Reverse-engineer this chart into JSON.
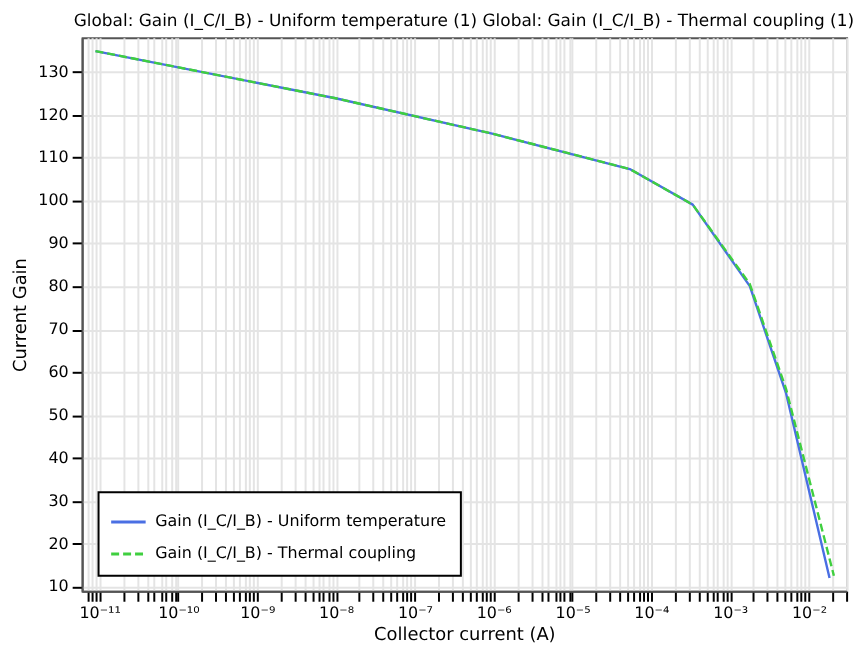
{
  "chart_data": {
    "type": "line",
    "title": "Global: Gain (I_C/I_B) - Uniform temperature (1)  Global: Gain (I_C/I_B) - Thermal coupling (1)",
    "xlabel": "Collector current (A)",
    "ylabel": "Current Gain",
    "log": "x",
    "grid": true,
    "legend": "bottom left",
    "xlim": [
      6e-12,
      0.03
    ],
    "ylim": [
      9,
      138
    ],
    "xticks": [
      {
        "value": 1e-11,
        "label": "10⁻¹¹"
      },
      {
        "value": 1e-10,
        "label": "10⁻¹⁰"
      },
      {
        "value": 1e-09,
        "label": "10⁻⁹"
      },
      {
        "value": 1e-08,
        "label": "10⁻⁸"
      },
      {
        "value": 1e-07,
        "label": "10⁻⁷"
      },
      {
        "value": 1e-06,
        "label": "10⁻⁶"
      },
      {
        "value": 1e-05,
        "label": "10⁻⁵"
      },
      {
        "value": 0.0001,
        "label": "10⁻⁴"
      },
      {
        "value": 0.001,
        "label": "10⁻³"
      },
      {
        "value": 0.01,
        "label": "10⁻²"
      },
      {
        "value": 7e-12,
        "label": null
      },
      {
        "value": 8e-12,
        "label": null
      },
      {
        "value": 9e-12,
        "label": null
      },
      {
        "value": 2e-11,
        "label": null
      },
      {
        "value": 3e-11,
        "label": null
      },
      {
        "value": 4e-11,
        "label": null
      },
      {
        "value": 5e-11,
        "label": null
      },
      {
        "value": 6e-11,
        "label": null
      },
      {
        "value": 7e-11,
        "label": null
      },
      {
        "value": 8e-11,
        "label": null
      },
      {
        "value": 9e-11,
        "label": null
      },
      {
        "value": 2e-10,
        "label": null
      },
      {
        "value": 3e-10,
        "label": null
      },
      {
        "value": 4e-10,
        "label": null
      },
      {
        "value": 5e-10,
        "label": null
      },
      {
        "value": 6e-10,
        "label": null
      },
      {
        "value": 7e-10,
        "label": null
      },
      {
        "value": 8e-10,
        "label": null
      },
      {
        "value": 9e-10,
        "label": null
      },
      {
        "value": 2e-09,
        "label": null
      },
      {
        "value": 3e-09,
        "label": null
      },
      {
        "value": 4e-09,
        "label": null
      },
      {
        "value": 5e-09,
        "label": null
      },
      {
        "value": 6e-09,
        "label": null
      },
      {
        "value": 7e-09,
        "label": null
      },
      {
        "value": 8e-09,
        "label": null
      },
      {
        "value": 9e-09,
        "label": null
      },
      {
        "value": 2e-08,
        "label": null
      },
      {
        "value": 3e-08,
        "label": null
      },
      {
        "value": 4e-08,
        "label": null
      },
      {
        "value": 5e-08,
        "label": null
      },
      {
        "value": 6e-08,
        "label": null
      },
      {
        "value": 7e-08,
        "label": null
      },
      {
        "value": 8e-08,
        "label": null
      },
      {
        "value": 9e-08,
        "label": null
      },
      {
        "value": 2e-07,
        "label": null
      },
      {
        "value": 3e-07,
        "label": null
      },
      {
        "value": 4e-07,
        "label": null
      },
      {
        "value": 5e-07,
        "label": null
      },
      {
        "value": 6e-07,
        "label": null
      },
      {
        "value": 7e-07,
        "label": null
      },
      {
        "value": 8e-07,
        "label": null
      },
      {
        "value": 9e-07,
        "label": null
      },
      {
        "value": 2e-06,
        "label": null
      },
      {
        "value": 3e-06,
        "label": null
      },
      {
        "value": 4e-06,
        "label": null
      },
      {
        "value": 5e-06,
        "label": null
      },
      {
        "value": 6e-06,
        "label": null
      },
      {
        "value": 7e-06,
        "label": null
      },
      {
        "value": 8e-06,
        "label": null
      },
      {
        "value": 9e-06,
        "label": null
      },
      {
        "value": 2e-05,
        "label": null
      },
      {
        "value": 3e-05,
        "label": null
      },
      {
        "value": 4e-05,
        "label": null
      },
      {
        "value": 5e-05,
        "label": null
      },
      {
        "value": 6e-05,
        "label": null
      },
      {
        "value": 7e-05,
        "label": null
      },
      {
        "value": 8e-05,
        "label": null
      },
      {
        "value": 9e-05,
        "label": null
      },
      {
        "value": 0.0002,
        "label": null
      },
      {
        "value": 0.0003,
        "label": null
      },
      {
        "value": 0.0004,
        "label": null
      },
      {
        "value": 0.0005,
        "label": null
      },
      {
        "value": 0.0006,
        "label": null
      },
      {
        "value": 0.0007,
        "label": null
      },
      {
        "value": 0.0008,
        "label": null
      },
      {
        "value": 0.0009,
        "label": null
      },
      {
        "value": 0.002,
        "label": null
      },
      {
        "value": 0.003,
        "label": null
      },
      {
        "value": 0.004,
        "label": null
      },
      {
        "value": 0.005,
        "label": null
      },
      {
        "value": 0.006,
        "label": null
      },
      {
        "value": 0.007,
        "label": null
      },
      {
        "value": 0.008,
        "label": null
      },
      {
        "value": 0.009,
        "label": null
      },
      {
        "value": 0.02,
        "label": null
      },
      {
        "value": 0.03,
        "label": null
      }
    ],
    "yticks": [
      10,
      20,
      30,
      40,
      50,
      60,
      70,
      80,
      90,
      100,
      110,
      120,
      130
    ],
    "series": [
      {
        "name": "Gain (I_C/I_B) - Uniform temperature",
        "color": "#4a6fe3",
        "line_style": "solid",
        "x": [
          9e-12,
          1e-08,
          1e-06,
          5.4e-05,
          0.00034,
          0.0018,
          0.0052,
          0.0185
        ],
        "values": [
          134.8,
          123.8,
          115.5,
          107.3,
          99,
          80,
          55,
          12
        ]
      },
      {
        "name": "Gain (I_C/I_B) - Thermal coupling",
        "color": "#3fcf3f",
        "line_style": "dashed",
        "x": [
          9e-12,
          1e-08,
          1e-06,
          5.4e-05,
          0.00034,
          0.0018,
          0.0052,
          0.021
        ],
        "values": [
          134.8,
          123.8,
          115.5,
          107.3,
          99,
          80.5,
          56,
          12.5
        ]
      }
    ]
  }
}
